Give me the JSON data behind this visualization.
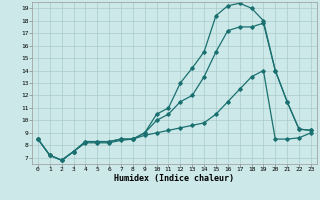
{
  "xlabel": "Humidex (Indice chaleur)",
  "background_color": "#cce8e8",
  "grid_color": "#aacccc",
  "line_color": "#1a7070",
  "xlim": [
    -0.5,
    23.5
  ],
  "ylim": [
    6.5,
    19.5
  ],
  "xticks": [
    0,
    1,
    2,
    3,
    4,
    5,
    6,
    7,
    8,
    9,
    10,
    11,
    12,
    13,
    14,
    15,
    16,
    17,
    18,
    19,
    20,
    21,
    22,
    23
  ],
  "yticks": [
    7,
    8,
    9,
    10,
    11,
    12,
    13,
    14,
    15,
    16,
    17,
    18,
    19
  ],
  "line1_x": [
    0,
    1,
    2,
    3,
    4,
    5,
    6,
    7,
    8,
    9,
    10,
    11,
    12,
    13,
    14,
    15,
    16,
    17,
    18,
    19,
    20,
    21,
    22,
    23
  ],
  "line1_y": [
    8.5,
    7.2,
    6.8,
    7.5,
    8.3,
    8.3,
    8.3,
    8.5,
    8.5,
    9.0,
    10.5,
    11.0,
    13.0,
    14.2,
    15.5,
    18.4,
    19.2,
    19.4,
    19.0,
    18.0,
    14.0,
    11.5,
    9.3,
    9.2
  ],
  "line2_x": [
    0,
    1,
    2,
    3,
    4,
    5,
    6,
    7,
    8,
    9,
    10,
    11,
    12,
    13,
    14,
    15,
    16,
    17,
    18,
    19,
    20,
    21,
    22,
    23
  ],
  "line2_y": [
    8.5,
    7.2,
    6.8,
    7.5,
    8.3,
    8.3,
    8.3,
    8.5,
    8.5,
    9.0,
    10.0,
    10.5,
    11.5,
    12.0,
    13.5,
    15.5,
    17.2,
    17.5,
    17.5,
    17.8,
    14.0,
    11.5,
    9.3,
    9.2
  ],
  "line3_x": [
    0,
    1,
    2,
    3,
    4,
    5,
    6,
    7,
    8,
    9,
    10,
    11,
    12,
    13,
    14,
    15,
    16,
    17,
    18,
    19,
    20,
    21,
    22,
    23
  ],
  "line3_y": [
    8.5,
    7.2,
    6.8,
    7.5,
    8.2,
    8.2,
    8.2,
    8.4,
    8.5,
    8.8,
    9.0,
    9.2,
    9.4,
    9.6,
    9.8,
    10.5,
    11.5,
    12.5,
    13.5,
    14.0,
    8.5,
    8.5,
    8.6,
    9.0
  ]
}
